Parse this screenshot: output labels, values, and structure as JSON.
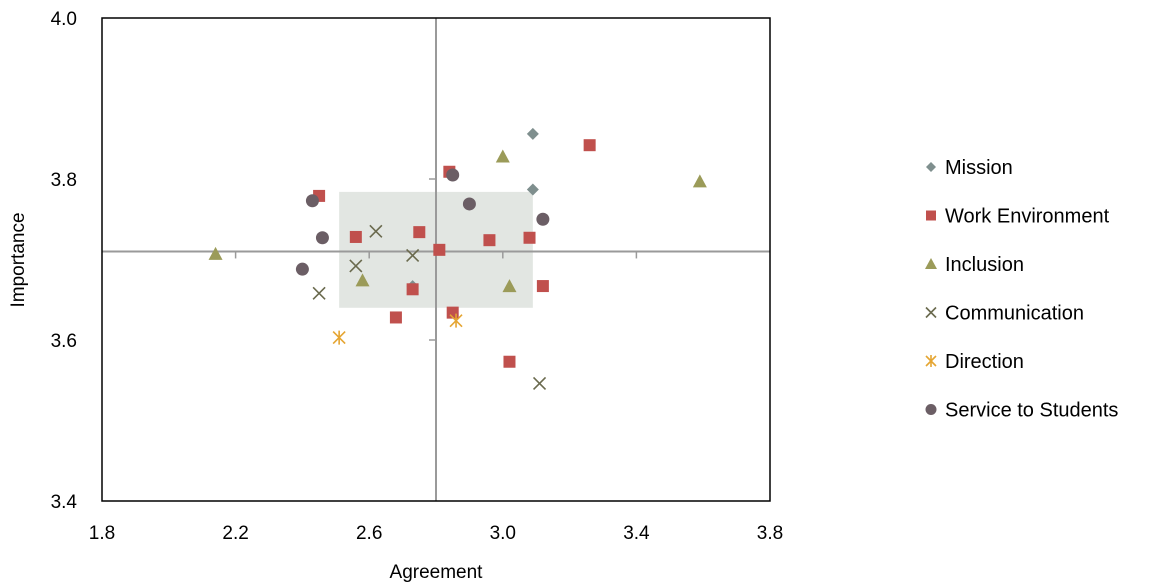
{
  "chart_data": {
    "type": "scatter",
    "xlabel": "Agreement",
    "ylabel": "Importance",
    "xlim": [
      1.8,
      3.8
    ],
    "ylim": [
      3.4,
      4.0
    ],
    "xticks": [
      "1.8",
      "2.2",
      "2.6",
      "3.0",
      "3.4",
      "3.8"
    ],
    "yticks": [
      "3.4",
      "3.6",
      "3.8",
      "4.0"
    ],
    "quadrant_lines": {
      "x": 2.8,
      "y": 3.71
    },
    "highlight_region": {
      "x": [
        2.51,
        3.09
      ],
      "y": [
        3.64,
        3.784
      ],
      "color": "#e2e6e2"
    },
    "grid": false,
    "legend_position": "right",
    "series": [
      {
        "name": "Mission",
        "marker": "diamond",
        "color": "#7f8f8e",
        "points": [
          [
            3.09,
            3.856
          ],
          [
            3.09,
            3.787
          ],
          [
            2.73,
            3.667
          ]
        ]
      },
      {
        "name": "Work Environment",
        "marker": "square",
        "color": "#c0504d",
        "points": [
          [
            2.45,
            3.779
          ],
          [
            2.84,
            3.809
          ],
          [
            3.26,
            3.842
          ],
          [
            2.56,
            3.728
          ],
          [
            2.75,
            3.734
          ],
          [
            2.81,
            3.712
          ],
          [
            2.96,
            3.724
          ],
          [
            3.08,
            3.727
          ],
          [
            2.73,
            3.663
          ],
          [
            3.12,
            3.667
          ],
          [
            2.68,
            3.628
          ],
          [
            2.85,
            3.634
          ],
          [
            3.02,
            3.573
          ]
        ]
      },
      {
        "name": "Inclusion",
        "marker": "triangle",
        "color": "#9b9b59",
        "points": [
          [
            3.0,
            3.828
          ],
          [
            3.59,
            3.797
          ],
          [
            2.14,
            3.707
          ],
          [
            2.58,
            3.674
          ],
          [
            3.02,
            3.667
          ]
        ]
      },
      {
        "name": "Communication",
        "marker": "x",
        "color": "#6a6a4e",
        "points": [
          [
            2.62,
            3.735
          ],
          [
            2.56,
            3.692
          ],
          [
            2.73,
            3.705
          ],
          [
            2.45,
            3.658
          ],
          [
            3.11,
            3.546
          ]
        ]
      },
      {
        "name": "Direction",
        "marker": "star",
        "color": "#e5a532",
        "points": [
          [
            2.51,
            3.603
          ],
          [
            2.86,
            3.624
          ]
        ]
      },
      {
        "name": "Service to Students",
        "marker": "circle",
        "color": "#6b5e65",
        "points": [
          [
            2.43,
            3.773
          ],
          [
            2.46,
            3.727
          ],
          [
            2.4,
            3.688
          ],
          [
            2.85,
            3.805
          ],
          [
            2.9,
            3.769
          ],
          [
            3.12,
            3.75
          ]
        ]
      }
    ]
  }
}
